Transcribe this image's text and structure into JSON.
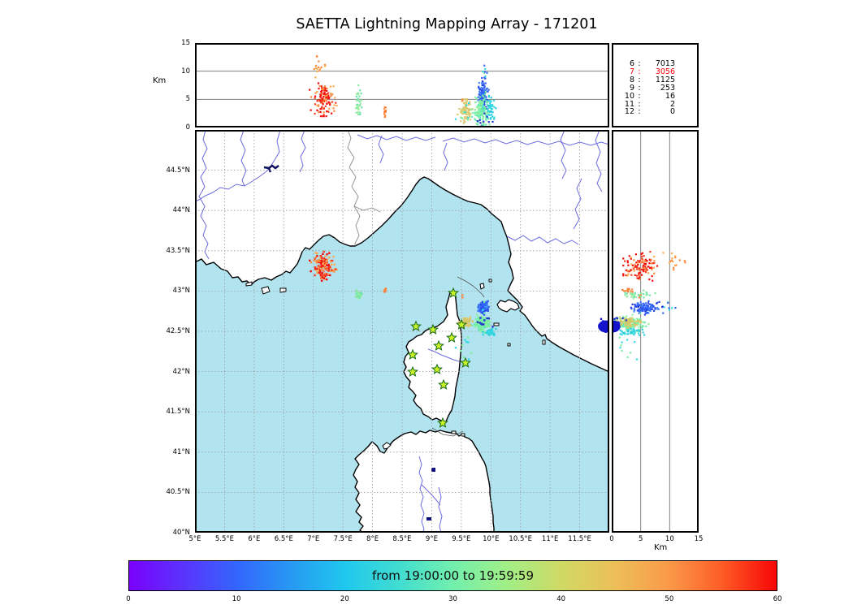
{
  "title": "SAETTA Lightning Mapping Array - 171201",
  "top_panel": {
    "ylabel": "Km",
    "km_ticks": [
      {
        "v": 15,
        "label": "15"
      },
      {
        "v": 10,
        "label": "10"
      },
      {
        "v": 5,
        "label": "5"
      },
      {
        "v": 0,
        "label": "0"
      }
    ]
  },
  "right_panel": {
    "xlabel": "Km",
    "km_ticks": [
      {
        "v": 0,
        "label": "0"
      },
      {
        "v": 5,
        "label": "5"
      },
      {
        "v": 10,
        "label": "10"
      },
      {
        "v": 15,
        "label": "15"
      }
    ]
  },
  "map_panel": {
    "lon_ticks": [
      {
        "v": 5,
        "label": "5°E"
      },
      {
        "v": 5.5,
        "label": "5.5°E"
      },
      {
        "v": 6,
        "label": "6°E"
      },
      {
        "v": 6.5,
        "label": "6.5°E"
      },
      {
        "v": 7,
        "label": "7°E"
      },
      {
        "v": 7.5,
        "label": "7.5°E"
      },
      {
        "v": 8,
        "label": "8°E"
      },
      {
        "v": 8.5,
        "label": "8.5°E"
      },
      {
        "v": 9,
        "label": "9°E"
      },
      {
        "v": 9.5,
        "label": "9.5°E"
      },
      {
        "v": 10,
        "label": "10°E"
      },
      {
        "v": 10.5,
        "label": "10.5°E"
      },
      {
        "v": 11,
        "label": "11°E"
      },
      {
        "v": 11.5,
        "label": "11.5°E"
      }
    ],
    "lat_ticks": [
      {
        "v": 44.5,
        "label": "44.5°N"
      },
      {
        "v": 44,
        "label": "44°N"
      },
      {
        "v": 43.5,
        "label": "43.5°N"
      },
      {
        "v": 43,
        "label": "43°N"
      },
      {
        "v": 42.5,
        "label": "42.5°N"
      },
      {
        "v": 42,
        "label": "42°N"
      },
      {
        "v": 41.5,
        "label": "41.5°N"
      },
      {
        "v": 41,
        "label": "41°N"
      },
      {
        "v": 40.5,
        "label": "40.5°N"
      },
      {
        "v": 40,
        "label": "40°N"
      }
    ],
    "sea_color": "#b2e4f0",
    "land_color": "#ffffff",
    "river_color": "#6b6bdf",
    "border_color": "#8a8a8a"
  },
  "colorbar": {
    "label": "from 19:00:00 to 19:59:59",
    "ticks": [
      {
        "v": 0,
        "label": "0"
      },
      {
        "v": 10,
        "label": "10"
      },
      {
        "v": 20,
        "label": "20"
      },
      {
        "v": 30,
        "label": "30"
      },
      {
        "v": 40,
        "label": "40"
      },
      {
        "v": 50,
        "label": "50"
      },
      {
        "v": 60,
        "label": "60"
      }
    ],
    "lim": [
      0,
      60
    ],
    "gradient_stops": [
      [
        0,
        "#7a01fb"
      ],
      [
        5,
        "#5b33fd"
      ],
      [
        10,
        "#3366fc"
      ],
      [
        15,
        "#2899f2"
      ],
      [
        20,
        "#1fc8ee"
      ],
      [
        25,
        "#41ddd1"
      ],
      [
        30,
        "#72efad"
      ],
      [
        35,
        "#a0ef86"
      ],
      [
        40,
        "#cfd964"
      ],
      [
        45,
        "#edbf58"
      ],
      [
        50,
        "#fa9a49"
      ],
      [
        55,
        "#fd5b26"
      ],
      [
        60,
        "#f80505"
      ]
    ]
  },
  "chart_data": {
    "type": "scatter",
    "title": "SAETTA Lightning Mapping Array - 171201",
    "axes": {
      "longitude_deg_E": [
        5,
        12
      ],
      "latitude_deg_N": [
        40,
        45
      ],
      "altitude_km": [
        0,
        15
      ],
      "altitude_gridlines_km": [
        5,
        10
      ],
      "map_grid_step_deg": 0.5,
      "grid": "dashed"
    },
    "time_window": "from 19:00:00 to 19:59:59",
    "colorbar_range_minutes": [
      0,
      60
    ],
    "flash_counts": [
      {
        "level": "6",
        "count": "7013",
        "color": "#000000"
      },
      {
        "level": "7",
        "count": "3056",
        "color": "#fd0000"
      },
      {
        "level": "8",
        "count": "1125",
        "color": "#000000"
      },
      {
        "level": "9",
        "count": "253",
        "color": "#000000"
      },
      {
        "level": "10",
        "count": "16",
        "color": "#000000"
      },
      {
        "level": "11",
        "count": "2",
        "color": "#000000"
      },
      {
        "level": "12",
        "count": "0",
        "color": "#000000"
      }
    ],
    "clusters": [
      {
        "name": "cote-azur-storm",
        "n": 120,
        "lon": [
          7.17,
          0.09
        ],
        "lat": [
          43.3,
          0.075
        ],
        "alt": [
          4.8,
          1.5,
          2,
          9
        ],
        "colors": [
          "#f40b0b",
          "#f63d23",
          "#fb8a3e",
          "#fcaa54",
          "#f40b0b"
        ]
      },
      {
        "name": "cote-azur-high-orange",
        "n": 16,
        "lon": [
          7.08,
          0.07
        ],
        "lat": [
          43.38,
          0.05
        ],
        "alt": [
          11,
          1.2,
          8.5,
          13.2
        ],
        "colors": [
          "#fcaa54",
          "#fb8a3e"
        ]
      },
      {
        "name": "ligurian-green-cell",
        "n": 36,
        "lon": [
          7.77,
          0.03
        ],
        "lat": [
          42.95,
          0.022
        ],
        "alt": [
          4.3,
          1.4,
          1.2,
          7.5
        ],
        "colors": [
          "#86e89b",
          "#9cefa0",
          "#6fe4ad"
        ]
      },
      {
        "name": "orange-column-8.2E",
        "n": 11,
        "lon": [
          8.21,
          0.012
        ],
        "lat": [
          43.01,
          0.012
        ],
        "alt": [
          2.6,
          0.5,
          1.7,
          3.6
        ],
        "colors": [
          "#fb8a3e",
          "#f8742e"
        ]
      },
      {
        "name": "east-corsica-blue",
        "n": 110,
        "lon": [
          9.87,
          0.045
        ],
        "lat": [
          42.795,
          0.038
        ],
        "alt": [
          5.8,
          1.3,
          2.5,
          8.8
        ],
        "colors": [
          "#2b50ee",
          "#3566fa",
          "#1f3fd8",
          "#4080f8"
        ]
      },
      {
        "name": "east-corsica-blue-top",
        "n": 8,
        "lon": [
          9.9,
          0.05
        ],
        "lat": [
          42.8,
          0.04
        ],
        "alt": [
          9.8,
          0.7,
          8.5,
          11
        ],
        "colors": [
          "#35d9e2",
          "#3566fa",
          "#72efad"
        ]
      },
      {
        "name": "east-corsica-green",
        "n": 150,
        "lon": [
          9.85,
          0.07
        ],
        "lat": [
          42.6,
          0.045
        ],
        "alt": [
          3.0,
          1.2,
          0.5,
          6.5
        ],
        "colors": [
          "#7cefa4",
          "#8df0a0",
          "#65e9b5"
        ]
      },
      {
        "name": "east-corsica-khaki",
        "n": 70,
        "lon": [
          9.57,
          0.05
        ],
        "lat": [
          42.61,
          0.03
        ],
        "alt": [
          2.9,
          1.0,
          0.8,
          5.0
        ],
        "colors": [
          "#d5c566",
          "#dcca6e"
        ]
      },
      {
        "name": "east-corsica-cyan",
        "n": 45,
        "lon": [
          9.99,
          0.045
        ],
        "lat": [
          42.49,
          0.018
        ],
        "alt": [
          3.4,
          0.9,
          1.5,
          6
        ],
        "colors": [
          "#35d9e2",
          "#2fccdc"
        ]
      },
      {
        "name": "east-corsica-navy-low",
        "n": 10,
        "lon": [
          9.9,
          0.06
        ],
        "lat": [
          42.62,
          0.05
        ],
        "alt": [
          1.2,
          0.7,
          0.2,
          2.5
        ],
        "colors": [
          "#2233cc"
        ]
      },
      {
        "name": "south-corsica-sparse",
        "n": 10,
        "lon": [
          9.55,
          0.09
        ],
        "lat": [
          42.27,
          0.09
        ],
        "alt": [
          2.3,
          1.0,
          0.8,
          4.5
        ],
        "colors": [
          "#7cefa4",
          "#35d9e2"
        ]
      },
      {
        "name": "capecorse-orange-dot",
        "n": 2,
        "lon": [
          9.52,
          0.01
        ],
        "lat": [
          42.94,
          0.01
        ],
        "alt": [
          5,
          0.3,
          4,
          6
        ],
        "colors": [
          "#fb8a3e"
        ]
      },
      {
        "name": "map-edge-navy-points",
        "n": 25,
        "lon": [
          11.93,
          0.05
        ],
        "lat": [
          42.56,
          0.03
        ],
        "alt": [
          0.3,
          0.25,
          0,
          1
        ],
        "colors": [
          "#1414cd",
          "#1111bb"
        ],
        "skip_top": true
      }
    ],
    "dense_blobs": [
      {
        "name": "map-edge-navy-blob",
        "lon": 11.94,
        "lat": 42.56,
        "alt_km": 0.2,
        "rx_deg": 0.13,
        "ry_deg": 0.075,
        "rx_km": 1.3,
        "color": "#1414cd"
      }
    ],
    "stations": [
      [
        9.365,
        42.974
      ],
      [
        8.733,
        42.56
      ],
      [
        9.021,
        42.52
      ],
      [
        9.502,
        42.581
      ],
      [
        9.337,
        42.419
      ],
      [
        9.118,
        42.319
      ],
      [
        8.678,
        42.208
      ],
      [
        9.57,
        42.107
      ],
      [
        8.678,
        41.996
      ],
      [
        9.09,
        42.026
      ],
      [
        9.2,
        41.835
      ],
      [
        9.186,
        41.361
      ]
    ],
    "station_marker": {
      "shape": "star",
      "fill": "#c9f227",
      "edge": "#156915"
    }
  }
}
